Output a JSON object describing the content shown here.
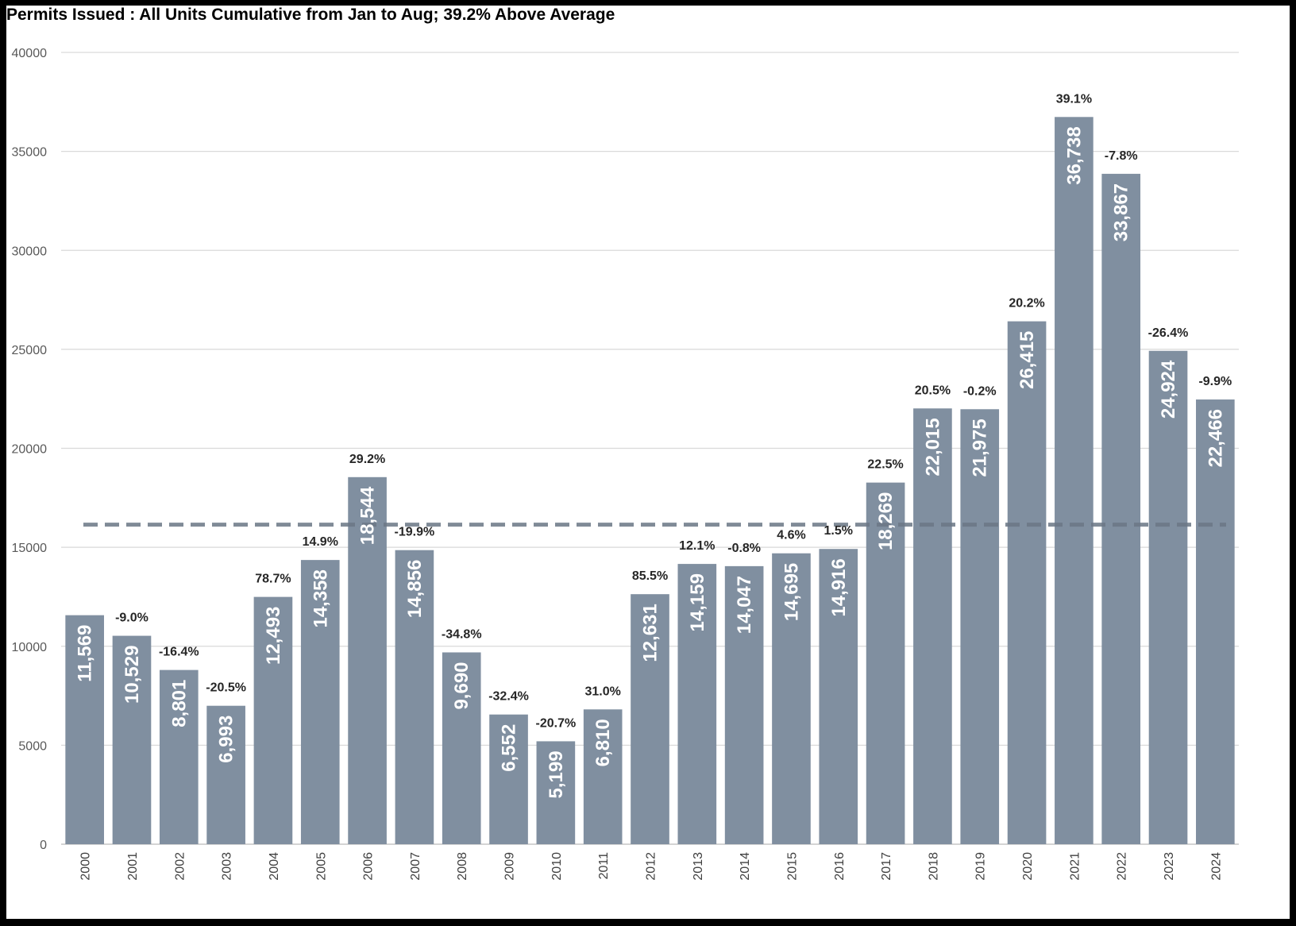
{
  "chart_data": {
    "type": "bar",
    "title": "Permits Issued : All Units Cumulative from Jan to Aug; 39.2% Above Average",
    "categories": [
      "2000",
      "2001",
      "2002",
      "2003",
      "2004",
      "2005",
      "2006",
      "2007",
      "2008",
      "2009",
      "2010",
      "2011",
      "2012",
      "2013",
      "2014",
      "2015",
      "2016",
      "2017",
      "2018",
      "2019",
      "2020",
      "2021",
      "2022",
      "2023",
      "2024"
    ],
    "values": [
      11569,
      10529,
      8801,
      6993,
      12493,
      14358,
      18544,
      14856,
      9690,
      6552,
      5199,
      6810,
      12631,
      14159,
      14047,
      14695,
      14916,
      18269,
      22015,
      21975,
      26415,
      36738,
      33867,
      24924,
      22466
    ],
    "value_labels": [
      "11,569",
      "10,529",
      "8,801",
      "6,993",
      "12,493",
      "14,358",
      "18,544",
      "14,856",
      "9,690",
      "6,552",
      "5,199",
      "6,810",
      "12,631",
      "14,159",
      "14,047",
      "14,695",
      "14,916",
      "18,269",
      "22,015",
      "21,975",
      "26,415",
      "36,738",
      "33,867",
      "24,924",
      "22,466"
    ],
    "change_labels": [
      "",
      "-9.0%",
      "-16.4%",
      "-20.5%",
      "78.7%",
      "14.9%",
      "29.2%",
      "-19.9%",
      "-34.8%",
      "-32.4%",
      "-20.7%",
      "31.0%",
      "85.5%",
      "12.1%",
      "-0.8%",
      "4.6%",
      "1.5%",
      "22.5%",
      "20.5%",
      "-0.2%",
      "20.2%",
      "39.1%",
      "-7.8%",
      "-26.4%",
      "-9.9%"
    ],
    "average_line": 16142,
    "ylim": [
      0,
      40000
    ],
    "yticks": [
      0,
      5000,
      10000,
      15000,
      20000,
      25000,
      30000,
      35000,
      40000
    ],
    "xlabel": "",
    "ylabel": "",
    "grid": true,
    "legend": "none",
    "colors": {
      "bar": "#808fa0",
      "average_line": "#6b7785",
      "grid": "#d9d9d9",
      "frame": "#000000"
    }
  }
}
